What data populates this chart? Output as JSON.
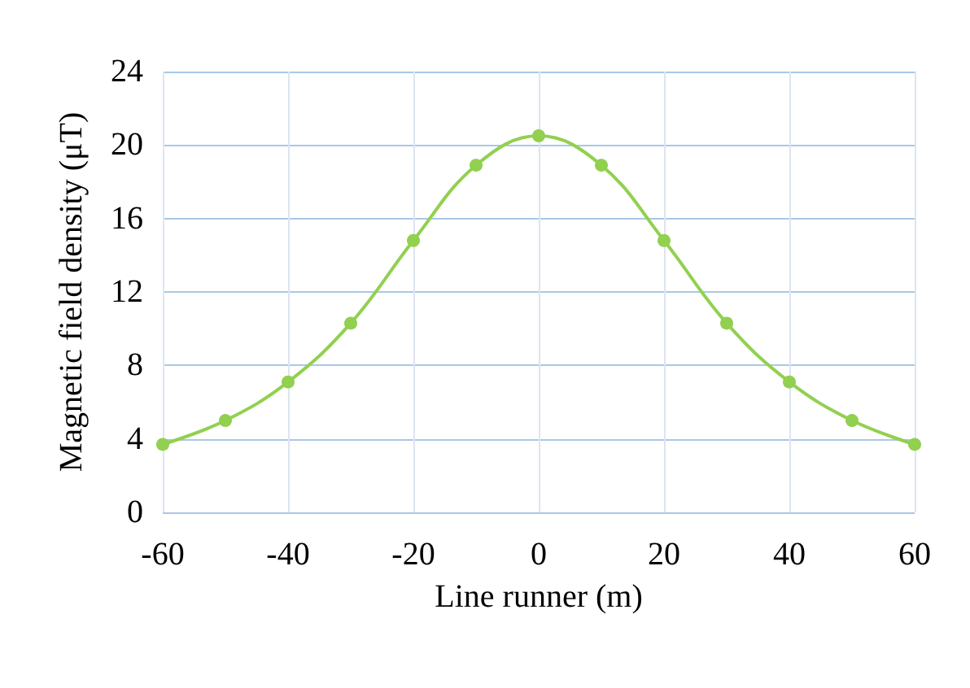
{
  "chart_data": {
    "type": "line",
    "xlabel": "Line runner (m)",
    "ylabel": "Magnetic field density (μT)",
    "x": [
      -60,
      -50,
      -40,
      -30,
      -20,
      -10,
      0,
      10,
      20,
      30,
      40,
      50,
      60
    ],
    "series": [
      {
        "color": "#92d050",
        "values": [
          3.7,
          5.0,
          7.1,
          10.3,
          14.8,
          18.9,
          20.5,
          18.9,
          14.8,
          10.3,
          7.1,
          5.0,
          3.7
        ]
      }
    ],
    "xlim": [
      -60,
      60
    ],
    "xticks": [
      -60,
      -40,
      -20,
      0,
      20,
      40,
      60
    ],
    "ylim": [
      0,
      24
    ],
    "yticks": [
      0,
      4,
      8,
      12,
      16,
      20,
      24
    ],
    "grid": true,
    "marker": "circle",
    "line_style": "solid"
  }
}
